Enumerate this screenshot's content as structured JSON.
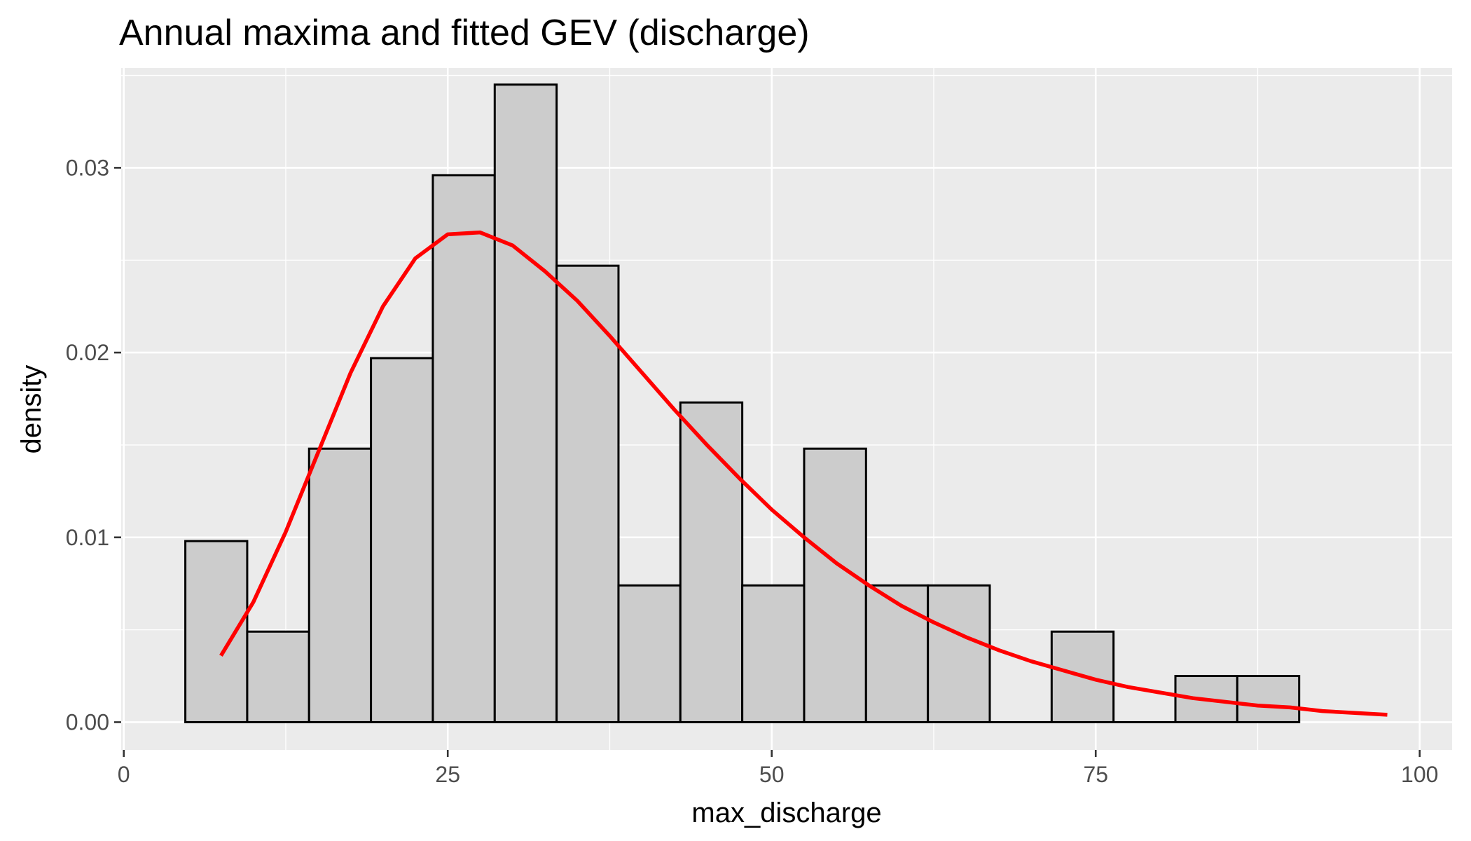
{
  "chart_data": {
    "type": "bar",
    "title": "Annual maxima and fitted GEV (discharge)",
    "xlabel": "max_discharge",
    "ylabel": "density",
    "xlim": [
      -0.2,
      102.5
    ],
    "ylim": [
      -0.0015,
      0.0354
    ],
    "x_ticks": [
      0,
      25,
      50,
      75,
      100
    ],
    "x_tick_labels": [
      "0",
      "25",
      "50",
      "75",
      "100"
    ],
    "y_ticks": [
      0.0,
      0.01,
      0.02,
      0.03
    ],
    "y_tick_labels": [
      "0.00",
      "0.01",
      "0.02",
      "0.03"
    ],
    "grid": true,
    "legend": "none",
    "colors": {
      "panel": "#ebebeb",
      "grid": "#ffffff",
      "bar_fill": "#cccccc",
      "bar_outline": "#000000",
      "curve": "#ff0000",
      "tick": "#333333"
    },
    "bars": {
      "bin_edges": [
        4.75,
        9.525,
        14.3,
        19.075,
        23.85,
        28.625,
        33.4,
        38.175,
        42.95,
        47.725,
        52.5,
        57.275,
        62.05,
        66.825,
        71.6,
        76.375,
        81.15,
        85.925,
        90.7
      ],
      "values": [
        0.0098,
        0.0049,
        0.0148,
        0.0197,
        0.0296,
        0.0345,
        0.0247,
        0.0074,
        0.0173,
        0.0074,
        0.0148,
        0.0074,
        0.0074,
        0.0,
        0.0049,
        0.0,
        0.0025,
        0.0025
      ]
    },
    "series": [
      {
        "type": "line",
        "x": [
          7.5,
          10,
          12.5,
          15,
          17.5,
          20,
          22.5,
          25,
          27.5,
          30,
          32.5,
          35,
          37.5,
          40,
          42.5,
          45,
          47.5,
          50,
          52.5,
          55,
          57.5,
          60,
          62.5,
          65,
          67.5,
          70,
          72.5,
          75,
          77.5,
          80,
          82.5,
          85,
          87.5,
          90,
          92.5,
          95,
          97.5
        ],
        "y": [
          0.0036,
          0.0065,
          0.0103,
          0.0146,
          0.0189,
          0.0225,
          0.0251,
          0.0264,
          0.0265,
          0.0258,
          0.0244,
          0.0228,
          0.0209,
          0.0189,
          0.0169,
          0.015,
          0.0132,
          0.0115,
          0.01,
          0.0086,
          0.0074,
          0.0063,
          0.0054,
          0.0046,
          0.0039,
          0.0033,
          0.0028,
          0.0023,
          0.0019,
          0.0016,
          0.0013,
          0.0011,
          0.0009,
          0.0008,
          0.0006,
          0.0005,
          0.0004
        ]
      }
    ]
  }
}
